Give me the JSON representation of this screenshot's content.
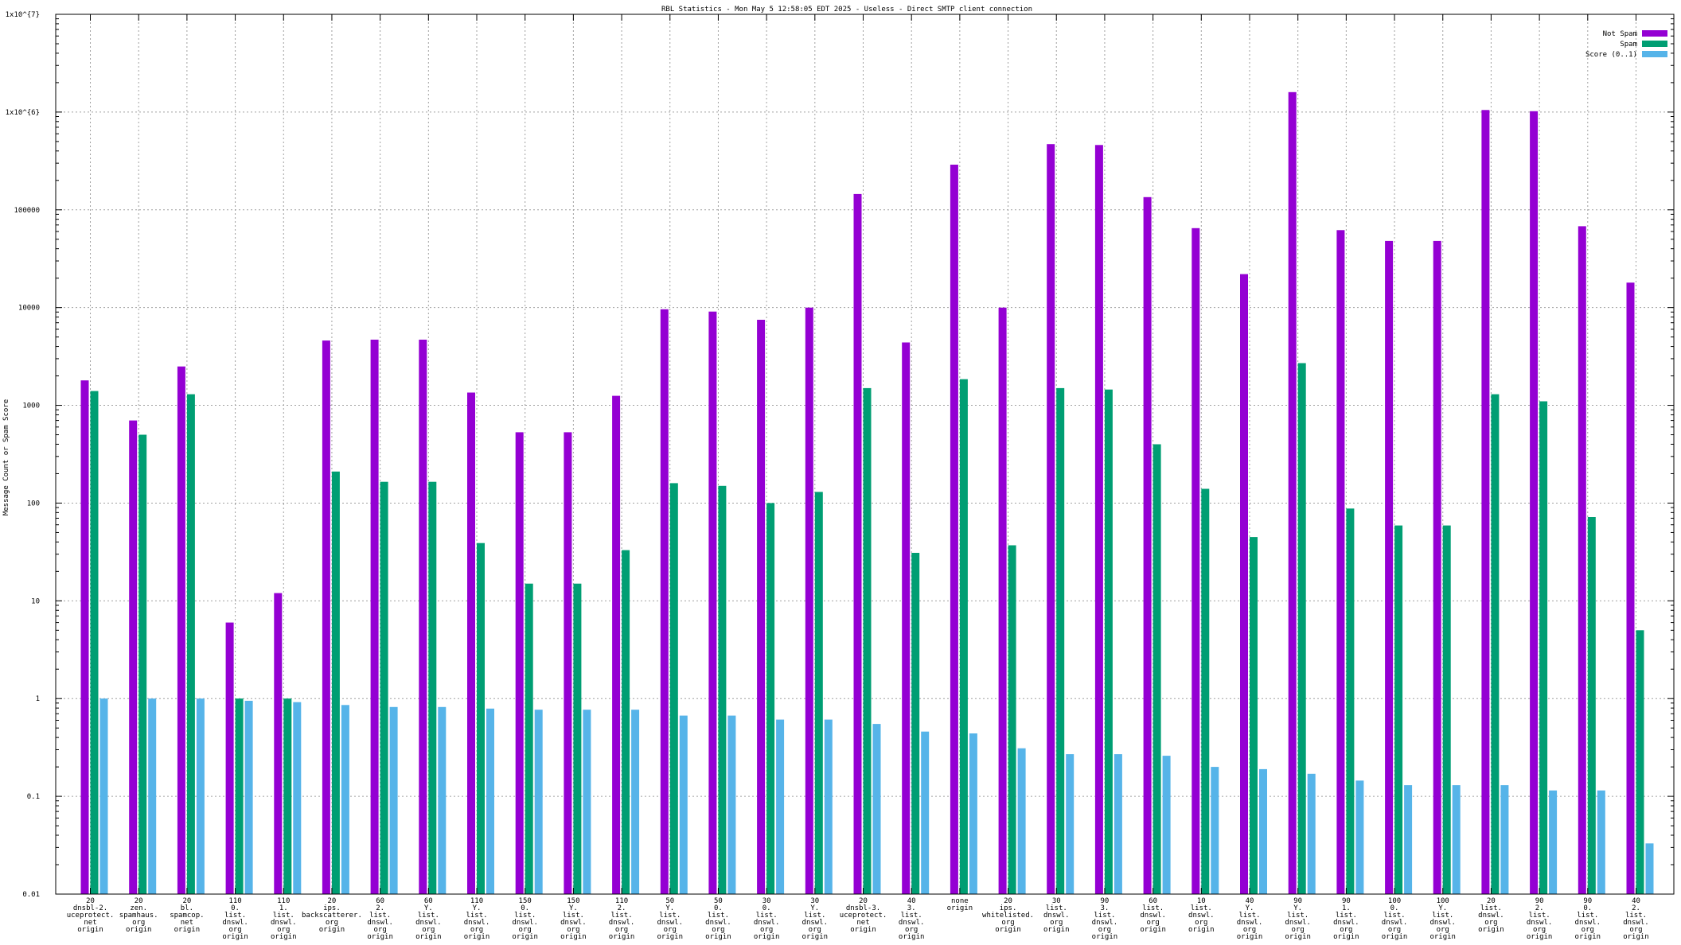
{
  "chart_data": {
    "type": "bar",
    "title": "RBL Statistics - Mon May  5 12:58:05 EDT 2025 - Useless - Direct SMTP client connection",
    "ylabel": "Message Count or Spam Score",
    "xlabel": "",
    "yscale": "log",
    "ylim": [
      0.01,
      10000000
    ],
    "ytick_values": [
      0.01,
      0.1,
      1,
      10,
      100,
      1000,
      10000,
      100000,
      1000000,
      10000000
    ],
    "ytick_labels": [
      "0.01",
      "0.1",
      "1",
      "10",
      "100",
      "1000",
      "10000",
      "100000",
      "1x10^{6}",
      "1x10^{7}"
    ],
    "grid": true,
    "legend_position": "top-right",
    "colors": {
      "Not Spam": "#9400d3",
      "Spam": "#009e73",
      "Score (0..1)": "#56b4e9"
    },
    "categories": [
      [
        "20",
        "dnsbl-2.",
        "uceprotect.",
        "net",
        "origin"
      ],
      [
        "20",
        "zen.",
        "spamhaus.",
        "org",
        "origin"
      ],
      [
        "20",
        "bl.",
        "spamcop.",
        "net",
        "origin"
      ],
      [
        "110",
        "0.",
        "list.",
        "dnswl.",
        "org",
        "origin"
      ],
      [
        "110",
        "1.",
        "list.",
        "dnswl.",
        "org",
        "origin"
      ],
      [
        "20",
        "ips.",
        "backscatterer.",
        "org",
        "origin"
      ],
      [
        "60",
        "2.",
        "list.",
        "dnswl.",
        "org",
        "origin"
      ],
      [
        "60",
        "Y.",
        "list.",
        "dnswl.",
        "org",
        "origin"
      ],
      [
        "110",
        "Y.",
        "list.",
        "dnswl.",
        "org",
        "origin"
      ],
      [
        "150",
        "0.",
        "list.",
        "dnswl.",
        "org",
        "origin"
      ],
      [
        "150",
        "Y.",
        "list.",
        "dnswl.",
        "org",
        "origin"
      ],
      [
        "110",
        "2.",
        "list.",
        "dnswl.",
        "org",
        "origin"
      ],
      [
        "50",
        "Y.",
        "list.",
        "dnswl.",
        "org",
        "origin"
      ],
      [
        "50",
        "0.",
        "list.",
        "dnswl.",
        "org",
        "origin"
      ],
      [
        "30",
        "0.",
        "list.",
        "dnswl.",
        "org",
        "origin"
      ],
      [
        "30",
        "Y.",
        "list.",
        "dnswl.",
        "org",
        "origin"
      ],
      [
        "20",
        "dnsbl-3.",
        "uceprotect.",
        "net",
        "origin"
      ],
      [
        "40",
        "3.",
        "list.",
        "dnswl.",
        "org",
        "origin"
      ],
      [
        "none",
        "origin"
      ],
      [
        "20",
        "ips.",
        "whitelisted.",
        "org",
        "origin"
      ],
      [
        "30",
        "list.",
        "dnswl.",
        "org",
        "origin"
      ],
      [
        "90",
        "3.",
        "list.",
        "dnswl.",
        "org",
        "origin"
      ],
      [
        "60",
        "list.",
        "dnswl.",
        "org",
        "origin"
      ],
      [
        "10",
        "list.",
        "dnswl.",
        "org",
        "origin"
      ],
      [
        "40",
        "Y.",
        "list.",
        "dnswl.",
        "org",
        "origin"
      ],
      [
        "90",
        "Y.",
        "list.",
        "dnswl.",
        "org",
        "origin"
      ],
      [
        "90",
        "1.",
        "list.",
        "dnswl.",
        "org",
        "origin"
      ],
      [
        "100",
        "0.",
        "list.",
        "dnswl.",
        "org",
        "origin"
      ],
      [
        "100",
        "Y.",
        "list.",
        "dnswl.",
        "org",
        "origin"
      ],
      [
        "20",
        "list.",
        "dnswl.",
        "org",
        "origin"
      ],
      [
        "90",
        "2.",
        "list.",
        "dnswl.",
        "org",
        "origin"
      ],
      [
        "90",
        "0.",
        "list.",
        "dnswl.",
        "org",
        "origin"
      ],
      [
        "40",
        "2.",
        "list.",
        "dnswl.",
        "org",
        "origin"
      ]
    ],
    "series": [
      {
        "name": "Not Spam",
        "values": [
          1800,
          700,
          2500,
          6,
          12,
          4600,
          4700,
          4700,
          1350,
          530,
          530,
          1250,
          9600,
          9100,
          7500,
          10000,
          145000,
          4400,
          290000,
          10000,
          470000,
          460000,
          135000,
          65000,
          22000,
          1600000,
          62000,
          48000,
          48000,
          1050000,
          1020000,
          68000,
          18000
        ]
      },
      {
        "name": "Spam",
        "values": [
          1400,
          500,
          1300,
          1,
          1,
          210,
          165,
          165,
          39,
          15,
          15,
          33,
          160,
          150,
          100,
          130,
          1500,
          31,
          1850,
          37,
          1500,
          1450,
          400,
          140,
          45,
          2700,
          88,
          59,
          59,
          1300,
          1100,
          72,
          5
        ]
      },
      {
        "name": "Score (0..1)",
        "values": [
          1,
          1,
          1,
          0.95,
          0.92,
          0.86,
          0.82,
          0.82,
          0.79,
          0.77,
          0.77,
          0.77,
          0.67,
          0.67,
          0.61,
          0.61,
          0.55,
          0.46,
          0.44,
          0.31,
          0.27,
          0.27,
          0.26,
          0.2,
          0.19,
          0.17,
          0.145,
          0.13,
          0.13,
          0.13,
          0.115,
          0.115,
          0.033
        ]
      }
    ]
  }
}
